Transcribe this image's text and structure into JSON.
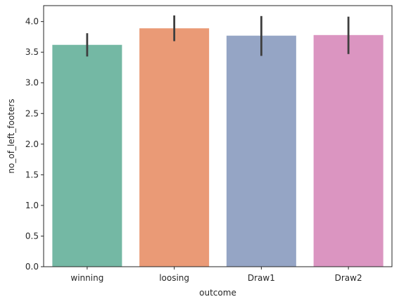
{
  "chart_data": {
    "type": "bar",
    "title": "",
    "xlabel": "outcome",
    "ylabel": "no_of_left_footers",
    "categories": [
      "winning",
      "loosing",
      "Draw1",
      "Draw2"
    ],
    "values": [
      3.62,
      3.89,
      3.77,
      3.78
    ],
    "error_bars": [
      [
        3.43,
        3.81
      ],
      [
        3.68,
        4.1
      ],
      [
        3.44,
        4.09
      ],
      [
        3.47,
        4.08
      ]
    ],
    "ylim": [
      0,
      4.26
    ],
    "yticks": [
      "0.0",
      "0.5",
      "1.0",
      "1.5",
      "2.0",
      "2.5",
      "3.0",
      "3.5",
      "4.0"
    ],
    "grid": false,
    "colors": [
      "#74b8a4",
      "#ea9a76",
      "#95a5c5",
      "#db95c1"
    ]
  }
}
